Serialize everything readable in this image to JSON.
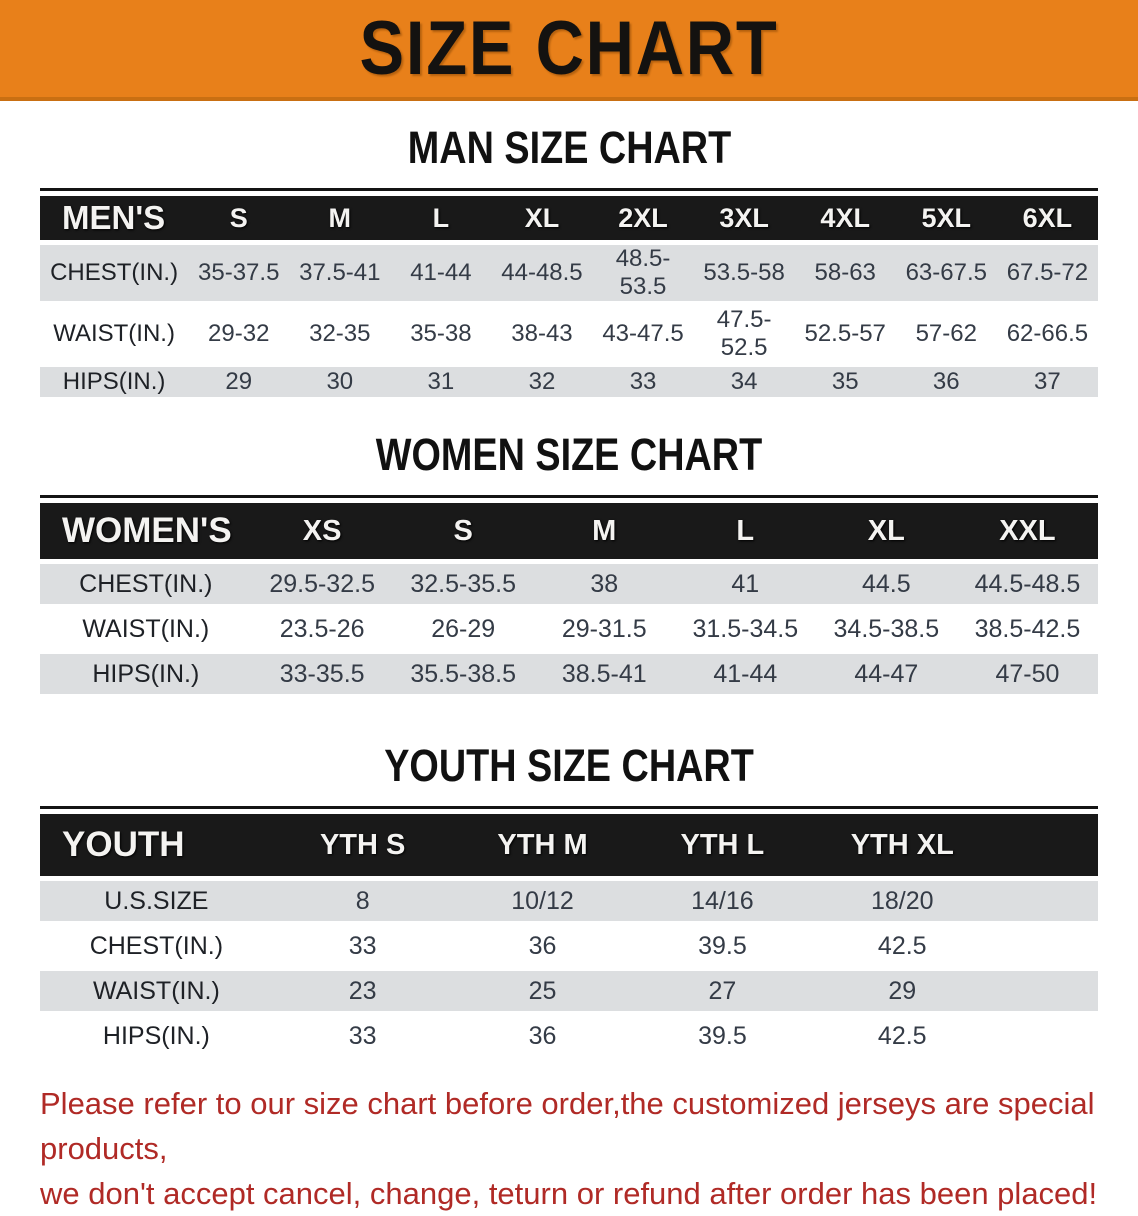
{
  "banner": {
    "title": "SIZE CHART"
  },
  "sections": [
    {
      "heading": "MAN SIZE CHART",
      "table": {
        "header_label": "MEN'S",
        "columns": [
          "S",
          "M",
          "L",
          "XL",
          "2XL",
          "3XL",
          "4XL",
          "5XL",
          "6XL"
        ],
        "rows": [
          {
            "label": "CHEST(IN.)",
            "values": [
              "35-37.5",
              "37.5-41",
              "41-44",
              "44-48.5",
              "48.5-53.5",
              "53.5-58",
              "58-63",
              "63-67.5",
              "67.5-72"
            ]
          },
          {
            "label": "WAIST(IN.)",
            "values": [
              "29-32",
              "32-35",
              "35-38",
              "38-43",
              "43-47.5",
              "47.5-52.5",
              "52.5-57",
              "57-62",
              "62-66.5"
            ]
          },
          {
            "label": "HIPS(IN.)",
            "values": [
              "29",
              "30",
              "31",
              "32",
              "33",
              "34",
              "35",
              "36",
              "37"
            ]
          }
        ]
      }
    },
    {
      "heading": "WOMEN SIZE CHART",
      "table": {
        "header_label": "WOMEN'S",
        "columns": [
          "XS",
          "S",
          "M",
          "L",
          "XL",
          "XXL"
        ],
        "rows": [
          {
            "label": "CHEST(IN.)",
            "values": [
              "29.5-32.5",
              "32.5-35.5",
              "38",
              "41",
              "44.5",
              "44.5-48.5"
            ]
          },
          {
            "label": "WAIST(IN.)",
            "values": [
              "23.5-26",
              "26-29",
              "29-31.5",
              "31.5-34.5",
              "34.5-38.5",
              "38.5-42.5"
            ]
          },
          {
            "label": "HIPS(IN.)",
            "values": [
              "33-35.5",
              "35.5-38.5",
              "38.5-41",
              "41-44",
              "44-47",
              "47-50"
            ]
          }
        ]
      }
    },
    {
      "heading": "YOUTH SIZE CHART",
      "table": {
        "header_label": "YOUTH",
        "columns": [
          "YTH S",
          "YTH M",
          "YTH L",
          "YTH XL"
        ],
        "rows": [
          {
            "label": "U.S.SIZE",
            "values": [
              "8",
              "10/12",
              "14/16",
              "18/20"
            ]
          },
          {
            "label": "CHEST(IN.)",
            "values": [
              "33",
              "36",
              "39.5",
              "42.5"
            ]
          },
          {
            "label": "WAIST(IN.)",
            "values": [
              "23",
              "25",
              "27",
              "29"
            ]
          },
          {
            "label": "HIPS(IN.)",
            "values": [
              "33",
              "36",
              "39.5",
              "42.5"
            ]
          }
        ]
      }
    }
  ],
  "footer": {
    "line1": "Please refer to our size chart before order,the customized jerseys are special products,",
    "line2": "we don't accept cancel, change, teturn or refund after order has been placed!"
  },
  "colors": {
    "banner_bg": "#E8801A",
    "banner_border": "#C96F12",
    "table_header_bg": "#191919",
    "row_alt_bg": "#DCDEE0",
    "footer_text": "#B02A26"
  }
}
